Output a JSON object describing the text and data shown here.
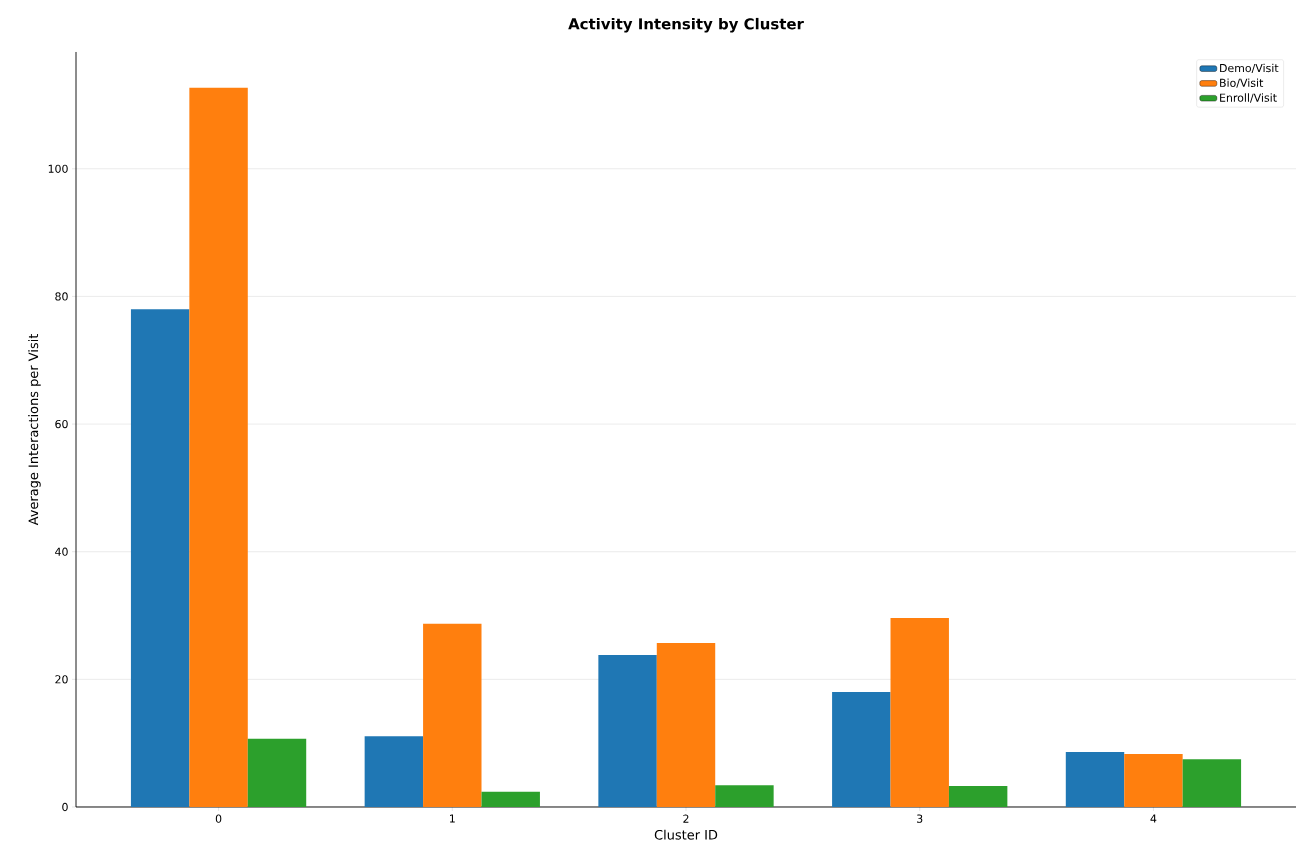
{
  "chart_data": {
    "type": "bar",
    "title": "Activity Intensity by Cluster",
    "xlabel": "Cluster ID",
    "ylabel": "Average Interactions per Visit",
    "categories": [
      "0",
      "1",
      "2",
      "3",
      "4"
    ],
    "series": [
      {
        "name": "Demo/Visit",
        "color": "#1f77b4",
        "values": [
          78.0,
          11.1,
          23.8,
          18.0,
          8.6
        ]
      },
      {
        "name": "Bio/Visit",
        "color": "#ff7f0e",
        "values": [
          112.7,
          28.7,
          25.7,
          29.6,
          8.3
        ]
      },
      {
        "name": "Enroll/Visit",
        "color": "#2ca02c",
        "values": [
          10.7,
          2.4,
          3.4,
          3.3,
          7.5
        ]
      }
    ],
    "ylim": [
      0,
      118.3
    ],
    "yticks": [
      0,
      20,
      40,
      60,
      80,
      100
    ],
    "grid": "y",
    "legend": "top right"
  }
}
